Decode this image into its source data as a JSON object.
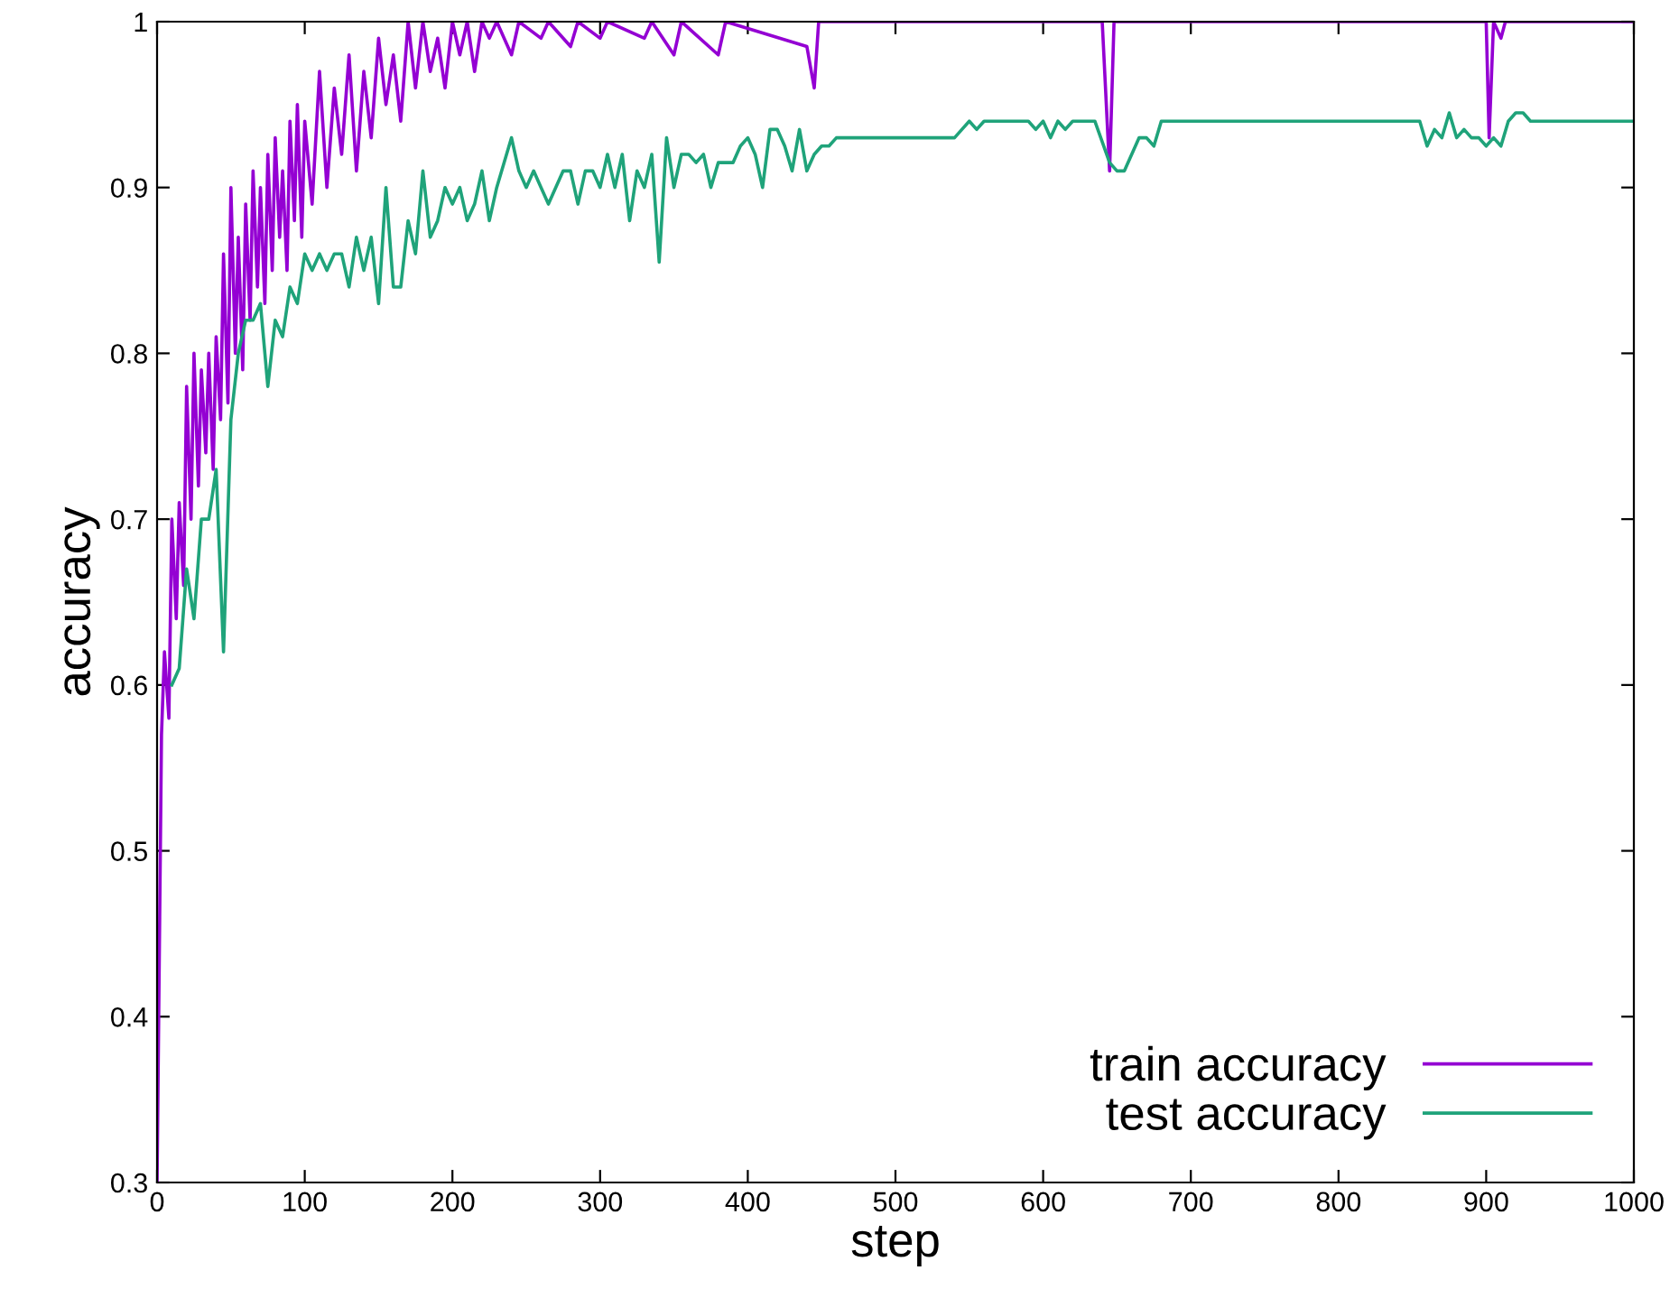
{
  "chart_data": {
    "type": "line",
    "xlabel": "step",
    "ylabel": "accuracy",
    "xlim": [
      0,
      1000
    ],
    "ylim": [
      0.3,
      1
    ],
    "xticks": [
      0,
      100,
      200,
      300,
      400,
      500,
      600,
      700,
      800,
      900,
      1000
    ],
    "yticks": [
      0.3,
      0.4,
      0.5,
      0.6,
      0.7,
      0.8,
      0.9,
      1
    ],
    "grid": false,
    "legend": "bottom right",
    "line_style": "solid",
    "marker": "none",
    "series": [
      {
        "name": "train accuracy",
        "color": "#9400d3",
        "x": [
          0,
          3,
          5,
          8,
          10,
          13,
          15,
          18,
          20,
          23,
          25,
          28,
          30,
          33,
          35,
          38,
          40,
          43,
          45,
          48,
          50,
          53,
          55,
          58,
          60,
          63,
          65,
          68,
          70,
          73,
          75,
          78,
          80,
          83,
          85,
          88,
          90,
          93,
          95,
          98,
          100,
          105,
          110,
          115,
          120,
          125,
          130,
          135,
          140,
          145,
          150,
          155,
          160,
          165,
          170,
          175,
          180,
          185,
          190,
          195,
          200,
          205,
          210,
          215,
          220,
          225,
          230,
          240,
          245,
          260,
          265,
          280,
          285,
          300,
          305,
          330,
          335,
          350,
          355,
          380,
          385,
          440,
          445,
          448,
          640,
          645,
          648,
          900,
          902,
          905,
          910,
          913,
          1000
        ],
        "values": [
          0.3,
          0.57,
          0.62,
          0.58,
          0.7,
          0.64,
          0.71,
          0.66,
          0.78,
          0.7,
          0.8,
          0.72,
          0.79,
          0.74,
          0.8,
          0.73,
          0.81,
          0.76,
          0.86,
          0.77,
          0.9,
          0.8,
          0.87,
          0.79,
          0.89,
          0.82,
          0.91,
          0.84,
          0.9,
          0.83,
          0.92,
          0.85,
          0.93,
          0.87,
          0.91,
          0.85,
          0.94,
          0.88,
          0.95,
          0.87,
          0.94,
          0.89,
          0.97,
          0.9,
          0.96,
          0.92,
          0.98,
          0.91,
          0.97,
          0.93,
          0.99,
          0.95,
          0.98,
          0.94,
          1.0,
          0.96,
          1.0,
          0.97,
          0.99,
          0.96,
          1.0,
          0.98,
          1.0,
          0.97,
          1.0,
          0.99,
          1.0,
          0.98,
          1.0,
          0.99,
          1.0,
          0.985,
          1.0,
          0.99,
          1.0,
          0.99,
          1.0,
          0.98,
          1.0,
          0.98,
          1.0,
          0.985,
          0.96,
          1.0,
          1.0,
          0.91,
          1.0,
          1.0,
          0.93,
          1.0,
          0.99,
          1.0,
          1.0
        ]
      },
      {
        "name": "test accuracy",
        "color": "#1fa37a",
        "x": [
          10,
          15,
          20,
          25,
          30,
          35,
          40,
          45,
          50,
          55,
          60,
          65,
          70,
          75,
          80,
          85,
          90,
          95,
          100,
          105,
          110,
          115,
          120,
          125,
          130,
          135,
          140,
          145,
          150,
          155,
          160,
          165,
          170,
          175,
          180,
          185,
          190,
          195,
          200,
          205,
          210,
          215,
          220,
          225,
          230,
          240,
          245,
          250,
          255,
          260,
          265,
          275,
          280,
          285,
          290,
          295,
          300,
          305,
          310,
          315,
          320,
          325,
          330,
          335,
          340,
          345,
          350,
          355,
          360,
          365,
          370,
          375,
          380,
          385,
          390,
          395,
          400,
          405,
          410,
          415,
          420,
          425,
          430,
          435,
          440,
          445,
          450,
          455,
          460,
          470,
          540,
          545,
          550,
          555,
          560,
          590,
          595,
          600,
          605,
          610,
          615,
          620,
          635,
          645,
          650,
          655,
          665,
          670,
          675,
          680,
          855,
          860,
          865,
          870,
          875,
          880,
          885,
          890,
          895,
          900,
          905,
          910,
          915,
          920,
          925,
          930,
          1000
        ],
        "values": [
          0.6,
          0.61,
          0.67,
          0.64,
          0.7,
          0.7,
          0.73,
          0.62,
          0.76,
          0.8,
          0.82,
          0.82,
          0.83,
          0.78,
          0.82,
          0.81,
          0.84,
          0.83,
          0.86,
          0.85,
          0.86,
          0.85,
          0.86,
          0.86,
          0.84,
          0.87,
          0.85,
          0.87,
          0.83,
          0.9,
          0.84,
          0.84,
          0.88,
          0.86,
          0.91,
          0.87,
          0.88,
          0.9,
          0.89,
          0.9,
          0.88,
          0.89,
          0.91,
          0.88,
          0.9,
          0.93,
          0.91,
          0.9,
          0.91,
          0.9,
          0.89,
          0.91,
          0.91,
          0.89,
          0.91,
          0.91,
          0.9,
          0.92,
          0.9,
          0.92,
          0.88,
          0.91,
          0.9,
          0.92,
          0.855,
          0.93,
          0.9,
          0.92,
          0.92,
          0.915,
          0.92,
          0.9,
          0.915,
          0.915,
          0.915,
          0.925,
          0.93,
          0.92,
          0.9,
          0.935,
          0.935,
          0.925,
          0.91,
          0.935,
          0.91,
          0.92,
          0.925,
          0.925,
          0.93,
          0.93,
          0.93,
          0.935,
          0.94,
          0.935,
          0.94,
          0.94,
          0.935,
          0.94,
          0.93,
          0.94,
          0.935,
          0.94,
          0.94,
          0.915,
          0.91,
          0.91,
          0.93,
          0.93,
          0.925,
          0.94,
          0.94,
          0.925,
          0.935,
          0.93,
          0.945,
          0.93,
          0.935,
          0.93,
          0.93,
          0.925,
          0.93,
          0.925,
          0.94,
          0.945,
          0.945,
          0.94,
          0.94
        ]
      }
    ]
  }
}
